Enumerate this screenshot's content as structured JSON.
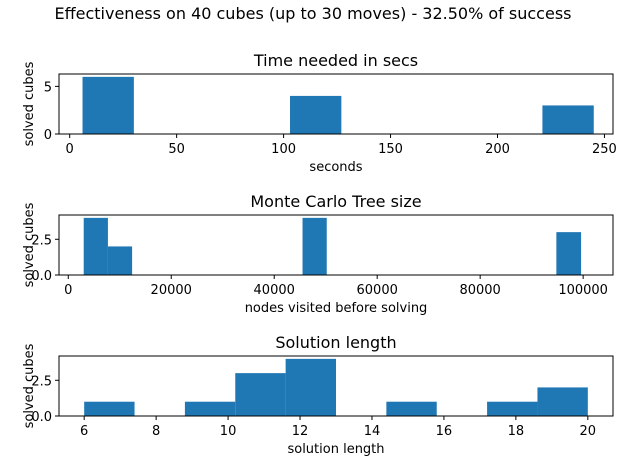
{
  "figure": {
    "suptitle": "Effectiveness on 40 cubes (up to 30 moves) - 32.50% of success"
  },
  "chart_data": [
    {
      "type": "bar",
      "title": "Time needed in secs",
      "xlabel": "seconds",
      "ylabel": "solved cubes",
      "xlim": [
        -5,
        254
      ],
      "ylim": [
        0,
        6.3
      ],
      "xticks": [
        0,
        50,
        100,
        150,
        200,
        250
      ],
      "yticks": [
        0,
        5
      ],
      "bins": [
        {
          "x0": 6,
          "x1": 30,
          "value": 6
        },
        {
          "x0": 103,
          "x1": 127,
          "value": 4
        },
        {
          "x0": 221,
          "x1": 245,
          "value": 3
        }
      ]
    },
    {
      "type": "bar",
      "title": "Monte Carlo Tree size",
      "xlabel": "nodes visited before solving",
      "ylabel": "solved cubes",
      "xlim": [
        -1800,
        105800
      ],
      "ylim": [
        0,
        4.2
      ],
      "xticks": [
        0,
        20000,
        40000,
        60000,
        80000,
        100000
      ],
      "ytick_labels": [
        "0.0",
        "2.5"
      ],
      "yticks": [
        0,
        2.5
      ],
      "bins": [
        {
          "x0": 3000,
          "x1": 7700,
          "value": 4
        },
        {
          "x0": 7700,
          "x1": 12400,
          "value": 2
        },
        {
          "x0": 45500,
          "x1": 50200,
          "value": 4
        },
        {
          "x0": 94800,
          "x1": 99600,
          "value": 3
        }
      ]
    },
    {
      "type": "bar",
      "title": "Solution length",
      "xlabel": "solution length",
      "ylabel": "solved cubes",
      "xlim": [
        5.3,
        20.7
      ],
      "ylim": [
        0,
        4.2
      ],
      "xticks": [
        6,
        8,
        10,
        12,
        14,
        16,
        18,
        20
      ],
      "ytick_labels": [
        "0.0",
        "2.5"
      ],
      "yticks": [
        0,
        2.5
      ],
      "bins": [
        {
          "x0": 6.0,
          "x1": 7.4,
          "value": 1
        },
        {
          "x0": 8.8,
          "x1": 10.2,
          "value": 1
        },
        {
          "x0": 10.2,
          "x1": 11.6,
          "value": 3
        },
        {
          "x0": 11.6,
          "x1": 13.0,
          "value": 4
        },
        {
          "x0": 14.4,
          "x1": 15.8,
          "value": 1
        },
        {
          "x0": 17.2,
          "x1": 18.6,
          "value": 1
        },
        {
          "x0": 18.6,
          "x1": 20.0,
          "value": 2
        }
      ]
    }
  ],
  "colors": {
    "bar": "#1f77b4",
    "axis": "#000000"
  }
}
